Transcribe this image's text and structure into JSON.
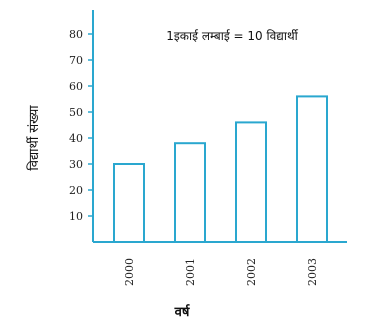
{
  "chart_data": {
    "type": "bar",
    "categories": [
      "2000",
      "2001",
      "2002",
      "2003"
    ],
    "values": [
      30,
      38,
      46,
      56
    ],
    "ylim": [
      0,
      90
    ],
    "yticks": [
      10,
      20,
      30,
      40,
      50,
      60,
      70,
      80
    ],
    "xlabel": "वर्ष",
    "ylabel": "विद्यार्थी संख्या",
    "annotation": "1इकाई लम्बाई = 10 विद्यार्थी",
    "grid": false,
    "colors": {
      "axis": "#2aa7cf",
      "bar_stroke": "#2aa7cf",
      "bar_fill": "#ffffff"
    }
  }
}
